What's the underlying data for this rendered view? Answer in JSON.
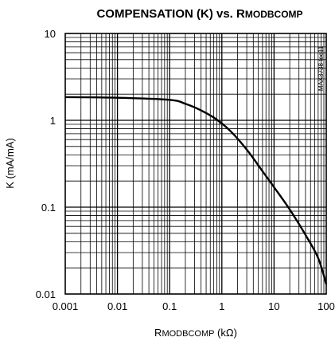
{
  "chart_data": {
    "type": "line",
    "title": {
      "main": "COMPENSATION (K) vs. R",
      "sub": "MODBCOMP"
    },
    "xlabel": {
      "main": "R",
      "sub": "MODBCOMP",
      "unit": " (kΩ)"
    },
    "ylabel": "K (mA/mA)",
    "x_scale": "log",
    "y_scale": "log",
    "xlim": [
      0.001,
      100
    ],
    "ylim": [
      0.01,
      10
    ],
    "x_ticks": [
      "0.001",
      "0.01",
      "0.1",
      "1",
      "10",
      "100"
    ],
    "y_ticks": [
      "0.01",
      "0.1",
      "1",
      "10"
    ],
    "grid": true,
    "annotation": "MAX3738 toc11",
    "series": [
      {
        "x": [
          0.001,
          0.01,
          0.1,
          0.2,
          0.4,
          0.8,
          1.5,
          3,
          6,
          10,
          20,
          40,
          70,
          100
        ],
        "y": [
          1.85,
          1.82,
          1.72,
          1.55,
          1.3,
          1.02,
          0.74,
          0.46,
          0.26,
          0.17,
          0.094,
          0.048,
          0.026,
          0.013
        ],
        "color": "#000000"
      }
    ]
  }
}
